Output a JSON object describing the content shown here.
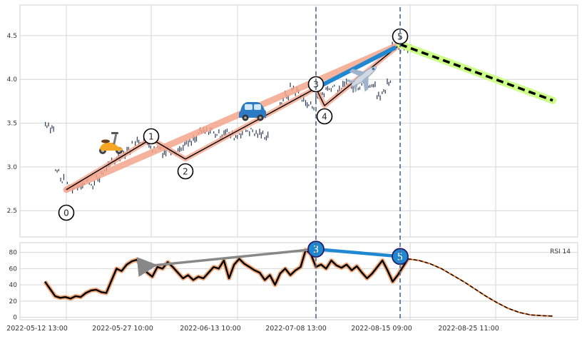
{
  "chart_data": [
    {
      "type": "candlestick",
      "panel": "price",
      "ylim": [
        2.2,
        4.85
      ],
      "yticks": [
        2.5,
        3.0,
        3.5,
        4.0,
        4.5
      ],
      "ytick_labels": [
        "2.5",
        "3.0",
        "3.5",
        "4.0",
        "4.5"
      ],
      "grid": true,
      "price_series": [
        3.49,
        3.45,
        2.95,
        2.85,
        2.78,
        2.76,
        2.79,
        2.81,
        2.84,
        2.8,
        2.86,
        2.94,
        3.0,
        3.06,
        3.12,
        3.16,
        3.2,
        3.25,
        3.3,
        3.31,
        3.26,
        3.2,
        3.22,
        3.17,
        3.2,
        3.19,
        3.2,
        3.25,
        3.27,
        3.31,
        3.39,
        3.4,
        3.42,
        3.38,
        3.37,
        3.41,
        3.36,
        3.35,
        3.39,
        3.42,
        3.41,
        3.38,
        3.37,
        3.36,
        null,
        null,
        3.74,
        3.82,
        3.9,
        3.86,
        3.79,
        3.71,
        3.7,
        3.78,
        3.84,
        3.89,
        3.92,
        3.86,
        3.92,
        3.97,
        3.9,
        3.93,
        3.98,
        3.95,
        3.96,
        3.8,
        3.85,
        3.98,
        4.38,
        4.36,
        4.39,
        4.37
      ],
      "wave_points": [
        {
          "label": "0",
          "x": "2022-05-14",
          "y": 2.74
        },
        {
          "label": "1",
          "x": "2022-05-27",
          "y": 3.32
        },
        {
          "label": "2",
          "x": "2022-06-03",
          "y": 3.09
        },
        {
          "label": "3",
          "x": "2022-07-14",
          "y": 3.9
        },
        {
          "label": "4",
          "x": "2022-07-16",
          "y": 3.7
        },
        {
          "label": "5",
          "x": "2022-08-15",
          "y": 4.4
        }
      ],
      "trend_line": {
        "from": {
          "x": "2022-05-14",
          "y": 2.74
        },
        "to": {
          "x": "2022-08-15",
          "y": 4.4
        }
      },
      "projection": {
        "from": {
          "x": "2022-08-15",
          "y": 4.4
        },
        "to": {
          "x": "2022-08-30",
          "y": 3.76
        }
      },
      "impulse_arrow": {
        "from": {
          "x": "2022-07-14",
          "y": 3.9
        },
        "to": {
          "x": "2022-08-15",
          "y": 4.4
        }
      },
      "icons": [
        "scooter-icon",
        "car-icon",
        "airplane-icon"
      ]
    },
    {
      "type": "line",
      "panel": "rsi",
      "legend": "RSI 14",
      "ylim": [
        -3,
        92
      ],
      "yticks": [
        0,
        20,
        40,
        60,
        80
      ],
      "ytick_labels": [
        "0",
        "20",
        "40",
        "60",
        "80"
      ],
      "grid": true,
      "x_tick_labels": [
        "2022-05-12 13:00",
        "2022-05-27 10:00",
        "2022-06-13 10:00",
        "2022-07-08 13:00",
        "2022-08-15 09:00",
        "2022-08-25 11:00"
      ],
      "rsi_series": [
        44,
        35,
        26,
        24,
        25,
        23,
        26,
        25,
        30,
        33,
        34,
        31,
        30,
        45,
        60,
        57,
        65,
        69,
        71,
        62,
        55,
        50,
        62,
        60,
        68,
        62,
        55,
        48,
        52,
        46,
        50,
        48,
        55,
        62,
        60,
        70,
        48,
        65,
        72,
        66,
        62,
        58,
        55,
        46,
        52,
        40,
        54,
        60,
        52,
        58,
        62,
        83,
        78,
        62,
        65,
        60,
        70,
        64,
        61,
        65,
        58,
        63,
        55,
        48,
        54,
        62,
        70,
        58,
        44,
        52,
        62,
        72
      ],
      "rsi_projection": [
        72,
        70,
        66,
        60,
        52,
        44,
        35,
        26,
        18,
        11,
        6,
        3,
        2,
        1.5
      ],
      "divergence_lines": [
        {
          "from": {
            "x": "2022-05-27",
            "y": 65
          },
          "to": {
            "x": "2022-07-14",
            "y": 84
          }
        },
        {
          "from": {
            "x": "2022-07-14",
            "y": 84
          },
          "to": {
            "x": "2022-08-15",
            "y": 75
          }
        }
      ],
      "markers": [
        {
          "label": "3",
          "x": "2022-07-14",
          "y": 84
        },
        {
          "label": "5",
          "x": "2022-08-15",
          "y": 75
        }
      ]
    }
  ],
  "colors": {
    "candle": "#2c3a52",
    "trend_glow": "#f4a58b",
    "projection_glow": "#ccff88",
    "arrow_blue": "#1f88d0",
    "arrow_gray": "#888888",
    "rsi_glow": "#f1a676",
    "rsi_projection": "#e07020",
    "vline": "#4a6a8a",
    "grid": "#d6d6d6",
    "marker_fill": "#1f88d0",
    "marker_stroke": "#2a1a6a"
  }
}
